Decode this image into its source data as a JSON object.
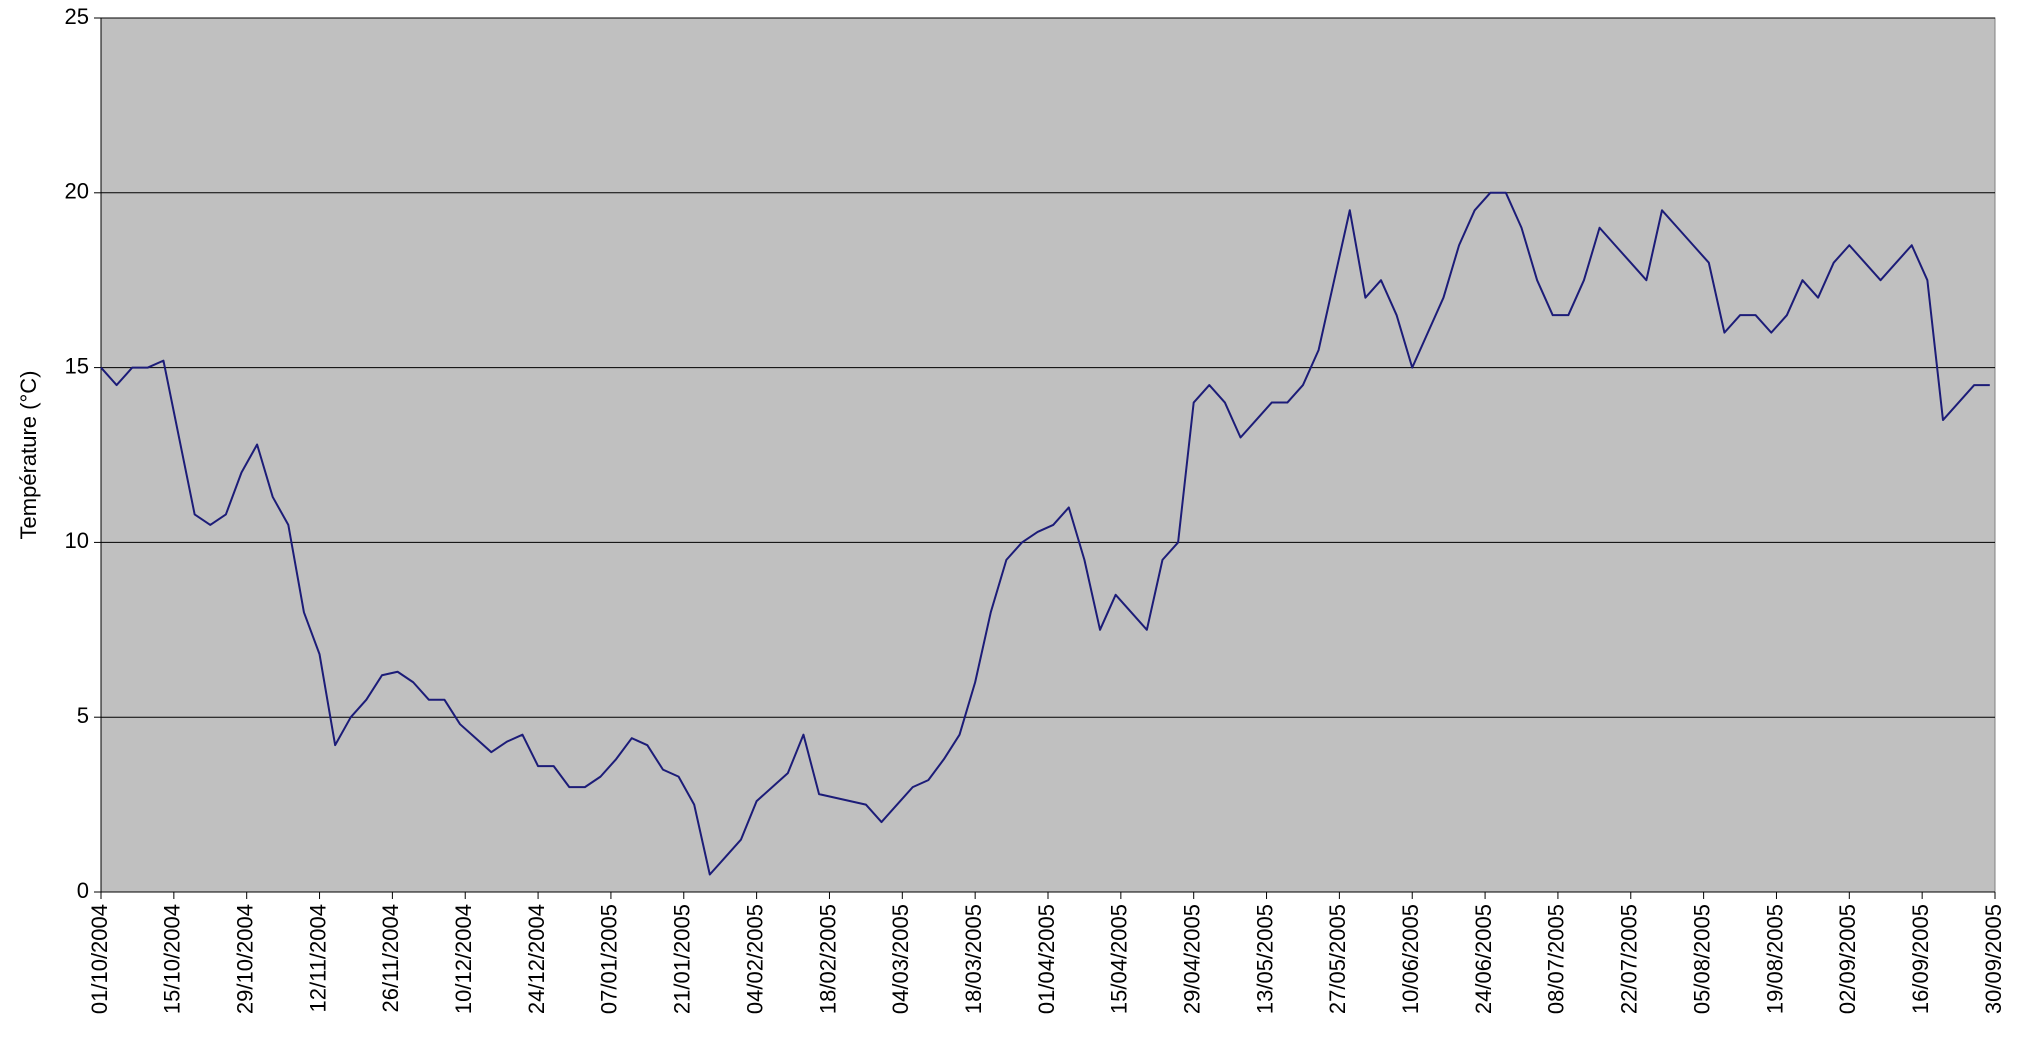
{
  "chart_data": {
    "type": "line",
    "y_label": "Température (°C)",
    "color": "#1c1c78",
    "plot_background": "#c0c0c0",
    "grid": true,
    "xlim": [
      "01/10/2004",
      "30/09/2005"
    ],
    "xticks": [
      "01/10/2004",
      "15/10/2004",
      "29/10/2004",
      "12/11/2004",
      "26/11/2004",
      "10/12/2004",
      "24/12/2004",
      "07/01/2005",
      "21/01/2005",
      "04/02/2005",
      "18/02/2005",
      "04/03/2005",
      "18/03/2005",
      "01/04/2005",
      "15/04/2005",
      "29/04/2005",
      "13/05/2005",
      "27/05/2005",
      "10/06/2005",
      "24/06/2005",
      "08/07/2005",
      "22/07/2005",
      "05/08/2005",
      "19/08/2005",
      "02/09/2005",
      "16/09/2005",
      "30/09/2005"
    ],
    "ylim": [
      0,
      25
    ],
    "yticks": [
      0,
      5,
      10,
      15,
      20,
      25
    ],
    "x": [
      "01/10/2004",
      "04/10/2004",
      "07/10/2004",
      "10/10/2004",
      "13/10/2004",
      "16/10/2004",
      "19/10/2004",
      "22/10/2004",
      "25/10/2004",
      "28/10/2004",
      "31/10/2004",
      "03/11/2004",
      "06/11/2004",
      "09/11/2004",
      "12/11/2004",
      "15/11/2004",
      "18/11/2004",
      "21/11/2004",
      "24/11/2004",
      "27/11/2004",
      "30/11/2004",
      "03/12/2004",
      "06/12/2004",
      "09/12/2004",
      "12/12/2004",
      "15/12/2004",
      "18/12/2004",
      "21/12/2004",
      "24/12/2004",
      "27/12/2004",
      "30/12/2004",
      "02/01/2005",
      "05/01/2005",
      "08/01/2005",
      "11/01/2005",
      "14/01/2005",
      "17/01/2005",
      "20/01/2005",
      "23/01/2005",
      "26/01/2005",
      "29/01/2005",
      "01/02/2005",
      "04/02/2005",
      "07/02/2005",
      "10/02/2005",
      "13/02/2005",
      "16/02/2005",
      "19/02/2005",
      "22/02/2005",
      "25/02/2005",
      "28/02/2005",
      "03/03/2005",
      "06/03/2005",
      "09/03/2005",
      "12/03/2005",
      "15/03/2005",
      "18/03/2005",
      "21/03/2005",
      "24/03/2005",
      "27/03/2005",
      "30/03/2005",
      "02/04/2005",
      "05/04/2005",
      "08/04/2005",
      "11/04/2005",
      "14/04/2005",
      "17/04/2005",
      "20/04/2005",
      "23/04/2005",
      "26/04/2005",
      "29/04/2005",
      "02/05/2005",
      "05/05/2005",
      "08/05/2005",
      "11/05/2005",
      "14/05/2005",
      "17/05/2005",
      "20/05/2005",
      "23/05/2005",
      "26/05/2005",
      "29/05/2005",
      "01/06/2005",
      "04/06/2005",
      "07/06/2005",
      "10/06/2005",
      "13/06/2005",
      "16/06/2005",
      "19/06/2005",
      "22/06/2005",
      "25/06/2005",
      "28/06/2005",
      "01/07/2005",
      "04/07/2005",
      "07/07/2005",
      "10/07/2005",
      "13/07/2005",
      "16/07/2005",
      "19/07/2005",
      "22/07/2005",
      "25/07/2005",
      "28/07/2005",
      "31/07/2005",
      "03/08/2005",
      "06/08/2005",
      "09/08/2005",
      "12/08/2005",
      "15/08/2005",
      "18/08/2005",
      "21/08/2005",
      "24/08/2005",
      "27/08/2005",
      "30/08/2005",
      "02/09/2005",
      "05/09/2005",
      "08/09/2005",
      "11/09/2005",
      "14/09/2005",
      "17/09/2005",
      "20/09/2005",
      "23/09/2005",
      "26/09/2005",
      "29/09/2005"
    ],
    "values": [
      15,
      14.5,
      15,
      15,
      15.2,
      13,
      10.8,
      10.5,
      10.8,
      12,
      12.8,
      11.3,
      10.5,
      8,
      6.8,
      4.2,
      5,
      5.5,
      6.2,
      6.3,
      6,
      5.5,
      5.5,
      4.8,
      4.4,
      4,
      4.3,
      4.5,
      3.6,
      3.6,
      3,
      3,
      3.3,
      3.8,
      4.4,
      4.2,
      3.5,
      3.3,
      2.5,
      0.5,
      1,
      1.5,
      2.6,
      3,
      3.4,
      4.5,
      2.8,
      2.7,
      2.6,
      2.5,
      2,
      2.5,
      3,
      3.2,
      3.8,
      4.5,
      6,
      8,
      9.5,
      10,
      10.3,
      10.5,
      11,
      9.5,
      7.5,
      8.5,
      8,
      7.5,
      9.5,
      10,
      14,
      14.5,
      14,
      13,
      13.5,
      14,
      14,
      14.5,
      15.5,
      17.5,
      19.5,
      17,
      17.5,
      16.5,
      15,
      16,
      17,
      18.5,
      19.5,
      20,
      20,
      19,
      17.5,
      16.5,
      16.5,
      17.5,
      19,
      18.5,
      18,
      17.5,
      19.5,
      19,
      18.5,
      18,
      16,
      16.5,
      16.5,
      16,
      16.5,
      17.5,
      17,
      18,
      18.5,
      18,
      17.5,
      18,
      18.5,
      17.5,
      13.5,
      14,
      14.5,
      14.5
    ]
  }
}
